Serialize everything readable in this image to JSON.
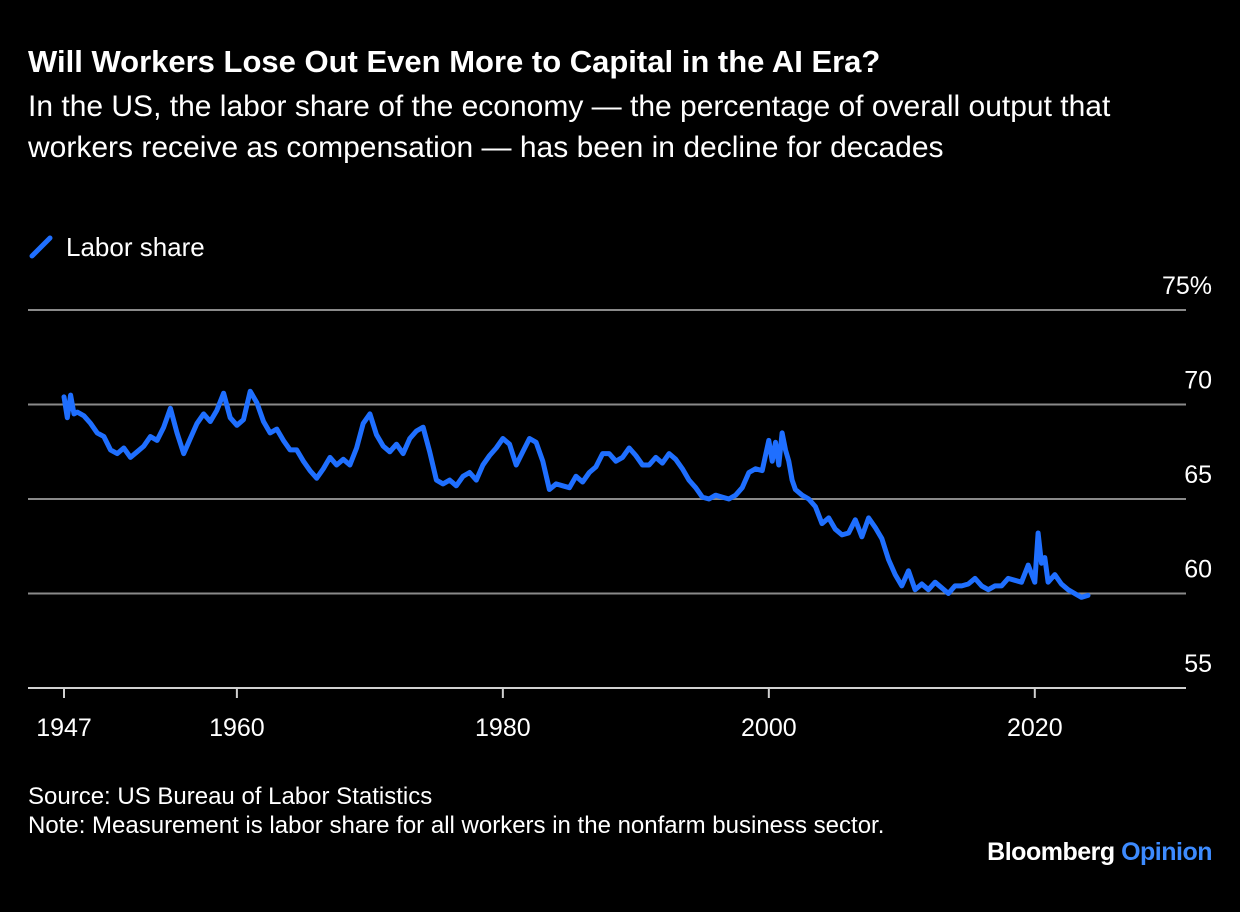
{
  "header": {
    "title": "Will Workers Lose Out Even More to Capital in the AI Era?",
    "subtitle": "In the US, the labor share of the economy — the percentage of overall output that workers receive as compensation — has been in decline for decades"
  },
  "legend": {
    "label": "Labor share",
    "icon": "diagonal-line-swatch"
  },
  "footer": {
    "source": "Source: US Bureau of Labor Statistics",
    "note": "Note: Measurement is labor share for all workers in the nonfarm business sector."
  },
  "brand": {
    "name": "Bloomberg",
    "suffix": "Opinion"
  },
  "colors": {
    "background": "#000000",
    "series": "#1f6fff",
    "grid": "#8a8a8a",
    "text": "#ffffff",
    "brand_accent": "#3d8bff"
  },
  "chart_data": {
    "type": "line",
    "title": "Will Workers Lose Out Even More to Capital in the AI Era?",
    "xlabel": "",
    "ylabel": "",
    "xlim": [
      1947,
      2024
    ],
    "ylim": [
      55,
      75
    ],
    "x_ticks": [
      1947,
      1960,
      1980,
      2000,
      2020
    ],
    "x_tick_labels": [
      "1947",
      "1960",
      "1980",
      "2000",
      "2020"
    ],
    "y_ticks": [
      55,
      60,
      65,
      70,
      75
    ],
    "y_tick_labels": [
      "55",
      "60",
      "65",
      "70",
      "75%"
    ],
    "grid": "horizontal",
    "legend_position": "top-left",
    "series": [
      {
        "name": "Labor share",
        "x": [
          1947.0,
          1947.25,
          1947.5,
          1947.75,
          1948.0,
          1948.5,
          1949.0,
          1949.5,
          1950.0,
          1950.5,
          1951.0,
          1951.5,
          1952.0,
          1952.5,
          1953.0,
          1953.5,
          1954.0,
          1954.5,
          1955.0,
          1955.5,
          1956.0,
          1956.5,
          1957.0,
          1957.5,
          1958.0,
          1958.5,
          1959.0,
          1959.5,
          1960.0,
          1960.5,
          1961.0,
          1961.5,
          1962.0,
          1962.5,
          1963.0,
          1963.5,
          1964.0,
          1964.5,
          1965.0,
          1965.5,
          1966.0,
          1966.5,
          1967.0,
          1967.5,
          1968.0,
          1968.5,
          1969.0,
          1969.5,
          1970.0,
          1970.5,
          1971.0,
          1971.5,
          1972.0,
          1972.5,
          1973.0,
          1973.5,
          1974.0,
          1974.5,
          1975.0,
          1975.5,
          1976.0,
          1976.5,
          1977.0,
          1977.5,
          1978.0,
          1978.5,
          1979.0,
          1979.5,
          1980.0,
          1980.5,
          1981.0,
          1981.5,
          1982.0,
          1982.5,
          1983.0,
          1983.5,
          1984.0,
          1984.5,
          1985.0,
          1985.5,
          1986.0,
          1986.5,
          1987.0,
          1987.5,
          1988.0,
          1988.5,
          1989.0,
          1989.5,
          1990.0,
          1990.5,
          1991.0,
          1991.5,
          1992.0,
          1992.5,
          1993.0,
          1993.5,
          1994.0,
          1994.5,
          1995.0,
          1995.5,
          1996.0,
          1996.5,
          1997.0,
          1997.5,
          1998.0,
          1998.5,
          1999.0,
          1999.5,
          2000.0,
          2000.25,
          2000.5,
          2000.75,
          2001.0,
          2001.25,
          2001.5,
          2001.75,
          2002.0,
          2002.5,
          2003.0,
          2003.5,
          2004.0,
          2004.5,
          2005.0,
          2005.5,
          2006.0,
          2006.5,
          2007.0,
          2007.5,
          2008.0,
          2008.5,
          2009.0,
          2009.5,
          2010.0,
          2010.5,
          2011.0,
          2011.5,
          2012.0,
          2012.5,
          2013.0,
          2013.5,
          2014.0,
          2014.5,
          2015.0,
          2015.5,
          2016.0,
          2016.5,
          2017.0,
          2017.5,
          2018.0,
          2018.5,
          2019.0,
          2019.5,
          2020.0,
          2020.25,
          2020.5,
          2020.75,
          2021.0,
          2021.5,
          2022.0,
          2022.5,
          2023.0,
          2023.5,
          2024.0
        ],
        "y": [
          70.4,
          69.3,
          70.5,
          69.5,
          69.6,
          69.4,
          69.0,
          68.5,
          68.3,
          67.6,
          67.4,
          67.7,
          67.2,
          67.5,
          67.8,
          68.3,
          68.1,
          68.8,
          69.8,
          68.5,
          67.4,
          68.2,
          69.0,
          69.5,
          69.1,
          69.7,
          70.6,
          69.3,
          68.9,
          69.2,
          70.7,
          70.1,
          69.1,
          68.5,
          68.7,
          68.1,
          67.6,
          67.6,
          67.0,
          66.5,
          66.1,
          66.6,
          67.2,
          66.8,
          67.1,
          66.8,
          67.7,
          69.0,
          69.5,
          68.4,
          67.8,
          67.5,
          67.9,
          67.4,
          68.2,
          68.6,
          68.8,
          67.5,
          66.0,
          65.8,
          66.0,
          65.7,
          66.2,
          66.4,
          66.0,
          66.8,
          67.3,
          67.7,
          68.2,
          67.9,
          66.8,
          67.5,
          68.2,
          68.0,
          67.0,
          65.5,
          65.8,
          65.7,
          65.6,
          66.2,
          65.9,
          66.4,
          66.7,
          67.4,
          67.4,
          67.0,
          67.2,
          67.7,
          67.3,
          66.8,
          66.8,
          67.2,
          66.9,
          67.4,
          67.1,
          66.6,
          66.0,
          65.6,
          65.1,
          65.0,
          65.2,
          65.1,
          65.0,
          65.2,
          65.6,
          66.4,
          66.6,
          66.5,
          68.1,
          67.0,
          68.0,
          66.8,
          68.5,
          67.6,
          67.0,
          66.0,
          65.5,
          65.2,
          65.0,
          64.6,
          63.7,
          64.0,
          63.4,
          63.1,
          63.2,
          63.9,
          63.0,
          64.0,
          63.5,
          62.9,
          61.8,
          61.0,
          60.4,
          61.2,
          60.2,
          60.5,
          60.2,
          60.6,
          60.3,
          60.0,
          60.4,
          60.4,
          60.5,
          60.8,
          60.4,
          60.2,
          60.4,
          60.4,
          60.8,
          60.7,
          60.6,
          61.5,
          60.6,
          63.2,
          61.6,
          61.9,
          60.6,
          61.0,
          60.5,
          60.2,
          60.0,
          59.8,
          59.9
        ]
      }
    ]
  }
}
